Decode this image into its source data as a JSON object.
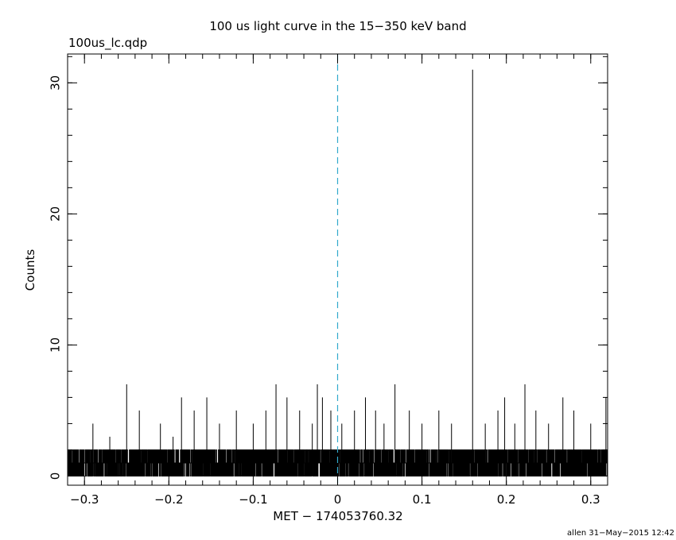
{
  "chart_data": {
    "type": "line",
    "title": "100 us light curve in the 15−350 keV band",
    "file_label": "100us_lc.qdp",
    "xlabel": "MET − 174053760.32",
    "ylabel": "Counts",
    "footer": "allen 31−May−2015 12:42",
    "xlim": [
      -0.32,
      0.32
    ],
    "ylim": [
      -0.7,
      32.2
    ],
    "grid": false,
    "bin_width": 0.0001,
    "baseline_max_counts": 2,
    "x_ticks": [
      {
        "value": -0.3,
        "label": "−0.3"
      },
      {
        "value": -0.2,
        "label": "−0.2"
      },
      {
        "value": -0.1,
        "label": "−0.1"
      },
      {
        "value": 0,
        "label": "0"
      },
      {
        "value": 0.1,
        "label": "0.1"
      },
      {
        "value": 0.2,
        "label": "0.2"
      },
      {
        "value": 0.3,
        "label": "0.3"
      }
    ],
    "y_ticks": [
      {
        "value": 0,
        "label": "0"
      },
      {
        "value": 10,
        "label": "10"
      },
      {
        "value": 20,
        "label": "20"
      },
      {
        "value": 30,
        "label": "30"
      }
    ],
    "marker": {
      "x": 0,
      "style": "dashed",
      "color": "#33aacc"
    },
    "series": [
      {
        "color": "#000000",
        "spikes": [
          {
            "x": -0.25,
            "y": 7
          },
          {
            "x": -0.185,
            "y": 6
          },
          {
            "x": -0.155,
            "y": 6
          },
          {
            "x": -0.073,
            "y": 7
          },
          {
            "x": -0.06,
            "y": 6
          },
          {
            "x": -0.024,
            "y": 7
          },
          {
            "x": -0.018,
            "y": 6
          },
          {
            "x": 0.033,
            "y": 6
          },
          {
            "x": 0.068,
            "y": 7
          },
          {
            "x": 0.16,
            "y": 31
          },
          {
            "x": 0.198,
            "y": 6
          },
          {
            "x": 0.222,
            "y": 7
          },
          {
            "x": 0.267,
            "y": 6
          },
          {
            "x": 0.318,
            "y": 6
          },
          {
            "x": -0.29,
            "y": 4
          },
          {
            "x": -0.27,
            "y": 3
          },
          {
            "x": -0.235,
            "y": 5
          },
          {
            "x": -0.21,
            "y": 4
          },
          {
            "x": -0.195,
            "y": 3
          },
          {
            "x": -0.17,
            "y": 5
          },
          {
            "x": -0.14,
            "y": 4
          },
          {
            "x": -0.12,
            "y": 5
          },
          {
            "x": -0.1,
            "y": 4
          },
          {
            "x": -0.085,
            "y": 5
          },
          {
            "x": -0.045,
            "y": 5
          },
          {
            "x": -0.03,
            "y": 4
          },
          {
            "x": -0.008,
            "y": 5
          },
          {
            "x": 0.005,
            "y": 4
          },
          {
            "x": 0.02,
            "y": 5
          },
          {
            "x": 0.045,
            "y": 5
          },
          {
            "x": 0.055,
            "y": 4
          },
          {
            "x": 0.085,
            "y": 5
          },
          {
            "x": 0.1,
            "y": 4
          },
          {
            "x": 0.12,
            "y": 5
          },
          {
            "x": 0.135,
            "y": 4
          },
          {
            "x": 0.175,
            "y": 4
          },
          {
            "x": 0.19,
            "y": 5
          },
          {
            "x": 0.21,
            "y": 4
          },
          {
            "x": 0.235,
            "y": 5
          },
          {
            "x": 0.25,
            "y": 4
          },
          {
            "x": 0.28,
            "y": 5
          },
          {
            "x": 0.3,
            "y": 4
          }
        ]
      }
    ]
  }
}
